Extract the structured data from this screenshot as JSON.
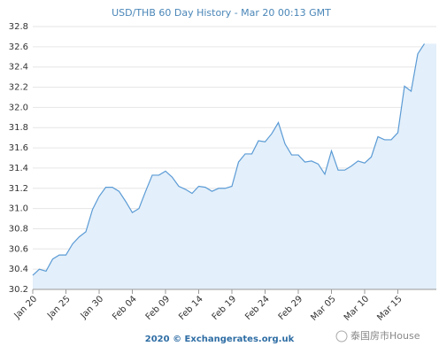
{
  "chart_data": {
    "type": "area",
    "title": "USD/THB 60 Day History - Mar 20 00:13 GMT",
    "footer": "2020 © Exchangerates.org.uk",
    "watermark": "泰国房市House",
    "categories": [
      "Jan 20",
      null,
      null,
      null,
      null,
      "Jan 25",
      null,
      null,
      null,
      null,
      "Jan 30",
      null,
      null,
      null,
      null,
      "Feb 04",
      null,
      null,
      null,
      null,
      "Feb 09",
      null,
      null,
      null,
      null,
      "Feb 14",
      null,
      null,
      null,
      null,
      "Feb 19",
      null,
      null,
      null,
      null,
      "Feb 24",
      null,
      null,
      null,
      null,
      "Feb 29",
      null,
      null,
      null,
      null,
      "Mar 05",
      null,
      null,
      null,
      null,
      "Mar 10",
      null,
      null,
      null,
      null,
      "Mar 15",
      null,
      null,
      null,
      null
    ],
    "values": [
      30.34,
      30.4,
      30.38,
      30.5,
      30.54,
      30.54,
      30.65,
      30.72,
      30.77,
      30.99,
      31.12,
      31.21,
      31.21,
      31.17,
      31.07,
      30.96,
      31.0,
      31.17,
      31.33,
      31.33,
      31.37,
      31.31,
      31.22,
      31.19,
      31.15,
      31.22,
      31.21,
      31.17,
      31.2,
      31.2,
      31.22,
      31.46,
      31.54,
      31.54,
      31.67,
      31.66,
      31.74,
      31.85,
      31.64,
      31.53,
      31.53,
      31.46,
      31.47,
      31.44,
      31.34,
      31.57,
      31.38,
      31.38,
      31.42,
      31.47,
      31.45,
      31.51,
      31.71,
      31.68,
      31.68,
      31.75,
      32.21,
      32.16,
      32.53,
      32.63
    ],
    "color": "#5b9bd5",
    "fill": "#e3effa",
    "ylim": [
      30.2,
      32.8
    ],
    "yticks": [
      30.2,
      30.4,
      30.6,
      30.8,
      {
        "value": 31.0,
        "label": "31.0"
      },
      31.2,
      31.4,
      31.6,
      31.8,
      {
        "value": 32.0,
        "label": "32.0"
      },
      32.2,
      32.4,
      32.6,
      32.8
    ],
    "grid": true
  }
}
